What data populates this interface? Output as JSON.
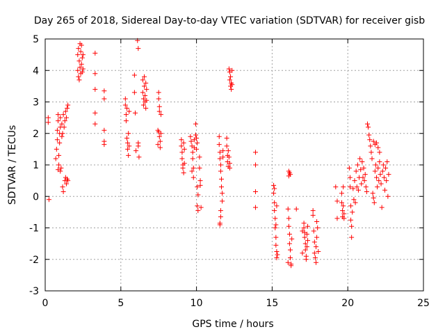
{
  "chart_data": {
    "type": "scatter",
    "title": "Day 265 of 2018, Sidereal Day-to-day VTEC variation (SDTVAR) for receiver gisb",
    "xlabel": "GPS time / hours",
    "ylabel": "SDTVAR / TECUs",
    "xlim": [
      0,
      25
    ],
    "ylim": [
      -3,
      5
    ],
    "xticks": [
      0,
      5,
      10,
      15,
      20,
      25
    ],
    "yticks": [
      -3,
      -2,
      -1,
      0,
      1,
      2,
      3,
      4,
      5
    ],
    "xtick_labels": [
      "0",
      "5",
      "10",
      "15",
      "20",
      "25"
    ],
    "ytick_labels": [
      "-3",
      "-2",
      "-1",
      "0",
      "1",
      "2",
      "3",
      "4",
      "5"
    ],
    "grid": true,
    "marker": "+",
    "color": "#ff0000",
    "series": [
      {
        "name": "SDTVAR",
        "points": [
          [
            0.2,
            2.5
          ],
          [
            0.2,
            2.35
          ],
          [
            0.25,
            -0.1
          ],
          [
            0.7,
            1.2
          ],
          [
            0.75,
            1.5
          ],
          [
            0.8,
            1.8
          ],
          [
            0.8,
            2.1
          ],
          [
            0.85,
            2.4
          ],
          [
            0.85,
            2.6
          ],
          [
            0.9,
            1.0
          ],
          [
            0.9,
            1.3
          ],
          [
            0.95,
            1.7
          ],
          [
            0.95,
            2.0
          ],
          [
            1.0,
            2.2
          ],
          [
            1.0,
            2.5
          ],
          [
            1.05,
            0.9
          ],
          [
            1.1,
            1.9
          ],
          [
            1.1,
            2.3
          ],
          [
            1.15,
            0.3
          ],
          [
            1.15,
            2.0
          ],
          [
            1.2,
            2.6
          ],
          [
            1.25,
            2.2
          ],
          [
            1.3,
            0.5
          ],
          [
            1.3,
            2.4
          ],
          [
            1.35,
            0.6
          ],
          [
            1.35,
            2.7
          ],
          [
            1.4,
            0.4
          ],
          [
            1.4,
            2.5
          ],
          [
            1.45,
            2.8
          ],
          [
            1.45,
            0.55
          ],
          [
            1.5,
            0.5
          ],
          [
            1.5,
            2.9
          ],
          [
            1.2,
            0.15
          ],
          [
            1.0,
            0.8
          ],
          [
            0.85,
            0.85
          ],
          [
            2.15,
            4.5
          ],
          [
            2.15,
            4.0
          ],
          [
            2.2,
            3.8
          ],
          [
            2.2,
            4.7
          ],
          [
            2.25,
            4.3
          ],
          [
            2.25,
            3.7
          ],
          [
            2.3,
            4.85
          ],
          [
            2.3,
            4.1
          ],
          [
            2.35,
            4.6
          ],
          [
            2.35,
            3.9
          ],
          [
            2.4,
            4.8
          ],
          [
            2.4,
            4.2
          ],
          [
            2.45,
            3.95
          ],
          [
            2.45,
            4.4
          ],
          [
            2.5,
            4.5
          ],
          [
            2.5,
            4.05
          ],
          [
            3.3,
            4.55
          ],
          [
            3.3,
            3.9
          ],
          [
            3.3,
            3.4
          ],
          [
            3.3,
            2.65
          ],
          [
            3.3,
            2.3
          ],
          [
            3.9,
            3.35
          ],
          [
            3.9,
            3.1
          ],
          [
            3.9,
            2.1
          ],
          [
            3.9,
            1.75
          ],
          [
            3.9,
            1.65
          ],
          [
            5.3,
            3.1
          ],
          [
            5.3,
            2.9
          ],
          [
            5.35,
            2.6
          ],
          [
            5.35,
            2.4
          ],
          [
            5.4,
            2.8
          ],
          [
            5.4,
            1.85
          ],
          [
            5.45,
            1.5
          ],
          [
            5.45,
            1.7
          ],
          [
            5.5,
            1.3
          ],
          [
            5.5,
            2.0
          ],
          [
            5.55,
            1.6
          ],
          [
            5.55,
            2.7
          ],
          [
            5.9,
            3.85
          ],
          [
            5.9,
            3.3
          ],
          [
            5.95,
            2.65
          ],
          [
            6.0,
            1.45
          ],
          [
            6.1,
            4.95
          ],
          [
            6.15,
            4.7
          ],
          [
            6.15,
            1.7
          ],
          [
            6.15,
            1.6
          ],
          [
            6.2,
            1.25
          ],
          [
            6.45,
            3.7
          ],
          [
            6.45,
            3.3
          ],
          [
            6.5,
            2.9
          ],
          [
            6.5,
            3.1
          ],
          [
            6.55,
            3.8
          ],
          [
            6.55,
            3.5
          ],
          [
            6.6,
            3.0
          ],
          [
            6.6,
            3.2
          ],
          [
            6.65,
            2.8
          ],
          [
            6.65,
            3.6
          ],
          [
            6.7,
            3.4
          ],
          [
            6.7,
            3.05
          ],
          [
            7.5,
            3.3
          ],
          [
            7.5,
            3.1
          ],
          [
            7.55,
            2.85
          ],
          [
            7.55,
            2.7
          ],
          [
            7.5,
            2.05
          ],
          [
            7.55,
            1.9
          ],
          [
            7.6,
            1.75
          ],
          [
            7.6,
            1.55
          ],
          [
            7.65,
            2.0
          ],
          [
            7.65,
            2.6
          ],
          [
            7.45,
            2.1
          ],
          [
            7.45,
            1.65
          ],
          [
            9.0,
            1.8
          ],
          [
            9.0,
            1.6
          ],
          [
            9.05,
            1.4
          ],
          [
            9.05,
            1.2
          ],
          [
            9.1,
            1.0
          ],
          [
            9.1,
            0.9
          ],
          [
            9.15,
            0.75
          ],
          [
            9.15,
            1.7
          ],
          [
            9.2,
            1.5
          ],
          [
            9.2,
            1.05
          ],
          [
            9.6,
            1.9
          ],
          [
            9.65,
            1.75
          ],
          [
            9.7,
            1.6
          ],
          [
            9.75,
            1.4
          ],
          [
            9.75,
            1.2
          ],
          [
            9.7,
            0.8
          ],
          [
            9.8,
            0.9
          ],
          [
            9.8,
            0.6
          ],
          [
            9.85,
            1.8
          ],
          [
            9.85,
            1.55
          ],
          [
            9.95,
            2.3
          ],
          [
            9.95,
            1.95
          ],
          [
            10.0,
            1.85
          ],
          [
            10.0,
            1.5
          ],
          [
            10.05,
            1.7
          ],
          [
            10.05,
            0.3
          ],
          [
            10.1,
            0.05
          ],
          [
            10.05,
            -0.3
          ],
          [
            10.1,
            -0.45
          ],
          [
            10.2,
            1.25
          ],
          [
            10.2,
            0.9
          ],
          [
            10.25,
            0.5
          ],
          [
            10.25,
            0.35
          ],
          [
            10.3,
            -0.35
          ],
          [
            11.5,
            1.9
          ],
          [
            11.5,
            1.65
          ],
          [
            11.55,
            1.4
          ],
          [
            11.55,
            1.2
          ],
          [
            11.6,
            1.0
          ],
          [
            11.6,
            0.8
          ],
          [
            11.65,
            0.55
          ],
          [
            11.65,
            0.3
          ],
          [
            11.7,
            0.1
          ],
          [
            11.7,
            -0.15
          ],
          [
            11.6,
            -0.45
          ],
          [
            11.6,
            -0.65
          ],
          [
            11.55,
            -0.85
          ],
          [
            11.55,
            -0.9
          ],
          [
            11.75,
            1.25
          ],
          [
            11.75,
            1.45
          ],
          [
            12.0,
            1.85
          ],
          [
            12.0,
            1.6
          ],
          [
            12.05,
            1.3
          ],
          [
            12.05,
            1.1
          ],
          [
            12.1,
            0.95
          ],
          [
            12.1,
            1.45
          ],
          [
            12.15,
            1.25
          ],
          [
            12.2,
            1.05
          ],
          [
            12.2,
            0.9
          ],
          [
            12.15,
            4.05
          ],
          [
            12.2,
            3.95
          ],
          [
            12.2,
            3.7
          ],
          [
            12.25,
            3.5
          ],
          [
            12.25,
            3.8
          ],
          [
            12.3,
            3.6
          ],
          [
            12.3,
            3.4
          ],
          [
            12.35,
            3.55
          ],
          [
            12.35,
            4.0
          ],
          [
            13.9,
            1.4
          ],
          [
            13.9,
            1.0
          ],
          [
            13.9,
            0.15
          ],
          [
            13.9,
            -0.35
          ],
          [
            15.1,
            0.35
          ],
          [
            15.1,
            0.1
          ],
          [
            15.15,
            -0.2
          ],
          [
            15.15,
            -0.45
          ],
          [
            15.2,
            -0.7
          ],
          [
            15.2,
            -1.0
          ],
          [
            15.25,
            -1.3
          ],
          [
            15.25,
            -1.55
          ],
          [
            15.3,
            -1.75
          ],
          [
            15.3,
            -1.95
          ],
          [
            15.35,
            -1.85
          ],
          [
            15.15,
            0.25
          ],
          [
            15.25,
            -0.9
          ],
          [
            15.3,
            -0.3
          ],
          [
            16.1,
            0.8
          ],
          [
            16.1,
            0.65
          ],
          [
            16.15,
            0.75
          ],
          [
            16.2,
            0.7
          ],
          [
            16.05,
            -0.4
          ],
          [
            16.1,
            -0.7
          ],
          [
            16.1,
            -0.95
          ],
          [
            16.15,
            -1.2
          ],
          [
            16.15,
            -1.5
          ],
          [
            16.2,
            -1.7
          ],
          [
            16.2,
            -1.95
          ],
          [
            16.25,
            -2.15
          ],
          [
            16.25,
            -2.2
          ],
          [
            16.05,
            -2.1
          ],
          [
            16.3,
            -1.35
          ],
          [
            16.6,
            -0.4
          ],
          [
            17.1,
            -0.85
          ],
          [
            17.1,
            -1.0
          ],
          [
            17.15,
            -1.15
          ],
          [
            17.15,
            -1.3
          ],
          [
            17.2,
            -1.5
          ],
          [
            17.2,
            -1.7
          ],
          [
            17.25,
            -1.9
          ],
          [
            17.25,
            -2.0
          ],
          [
            17.3,
            -1.6
          ],
          [
            17.3,
            -1.2
          ],
          [
            17.35,
            -1.4
          ],
          [
            17.35,
            -0.95
          ],
          [
            17.0,
            -1.8
          ],
          [
            17.0,
            -1.1
          ],
          [
            17.7,
            -0.45
          ],
          [
            17.75,
            -1.1
          ],
          [
            17.8,
            -1.45
          ],
          [
            17.8,
            -1.8
          ],
          [
            17.85,
            -1.95
          ],
          [
            17.9,
            -2.1
          ],
          [
            17.9,
            -1.6
          ],
          [
            17.95,
            -1.3
          ],
          [
            17.95,
            -0.8
          ],
          [
            18.0,
            -1.0
          ],
          [
            18.05,
            -1.75
          ],
          [
            17.7,
            -0.6
          ],
          [
            19.2,
            0.3
          ],
          [
            19.3,
            -0.15
          ],
          [
            19.3,
            -0.7
          ],
          [
            19.6,
            0.1
          ],
          [
            19.6,
            -0.2
          ],
          [
            19.65,
            -0.45
          ],
          [
            19.65,
            -0.65
          ],
          [
            19.7,
            -0.3
          ],
          [
            19.7,
            0.3
          ],
          [
            19.75,
            -0.55
          ],
          [
            19.75,
            -0.7
          ],
          [
            20.1,
            0.9
          ],
          [
            20.15,
            0.6
          ],
          [
            20.15,
            0.3
          ],
          [
            20.2,
            -0.3
          ],
          [
            20.2,
            -0.75
          ],
          [
            20.25,
            -0.95
          ],
          [
            20.25,
            -1.3
          ],
          [
            20.3,
            -0.5
          ],
          [
            20.35,
            0.25
          ],
          [
            20.4,
            -0.1
          ],
          [
            20.45,
            0.5
          ],
          [
            20.5,
            -0.2
          ],
          [
            20.55,
            0.8
          ],
          [
            20.6,
            0.3
          ],
          [
            20.65,
            1.0
          ],
          [
            20.7,
            0.2
          ],
          [
            20.75,
            0.6
          ],
          [
            20.8,
            1.2
          ],
          [
            20.85,
            0.85
          ],
          [
            20.9,
            0.4
          ],
          [
            20.95,
            1.1
          ],
          [
            21.0,
            0.6
          ],
          [
            21.05,
            0.9
          ],
          [
            21.1,
            0.5
          ],
          [
            21.15,
            0.7
          ],
          [
            21.2,
            0.3
          ],
          [
            21.25,
            0.15
          ],
          [
            21.3,
            2.3
          ],
          [
            21.35,
            2.2
          ],
          [
            21.4,
            1.95
          ],
          [
            21.45,
            1.8
          ],
          [
            21.5,
            1.6
          ],
          [
            21.55,
            1.4
          ],
          [
            21.6,
            1.2
          ],
          [
            21.65,
            0.1
          ],
          [
            21.7,
            -0.05
          ],
          [
            21.75,
            -0.2
          ],
          [
            21.8,
            0.8
          ],
          [
            21.85,
            1.0
          ],
          [
            21.9,
            0.6
          ],
          [
            21.95,
            0.3
          ],
          [
            22.0,
            0.9
          ],
          [
            22.05,
            0.5
          ],
          [
            22.1,
            1.1
          ],
          [
            22.15,
            0.7
          ],
          [
            22.2,
            0.4
          ],
          [
            22.25,
            -0.35
          ],
          [
            22.3,
            0.8
          ],
          [
            22.35,
            1.0
          ],
          [
            22.4,
            0.6
          ],
          [
            22.45,
            0.2
          ],
          [
            22.5,
            0.9
          ],
          [
            22.55,
            0.5
          ],
          [
            22.6,
            1.1
          ],
          [
            22.65,
            0.0
          ],
          [
            22.7,
            0.7
          ],
          [
            21.7,
            1.75
          ],
          [
            21.8,
            1.65
          ],
          [
            21.9,
            1.7
          ],
          [
            22.0,
            1.55
          ],
          [
            22.1,
            1.4
          ]
        ]
      }
    ]
  }
}
